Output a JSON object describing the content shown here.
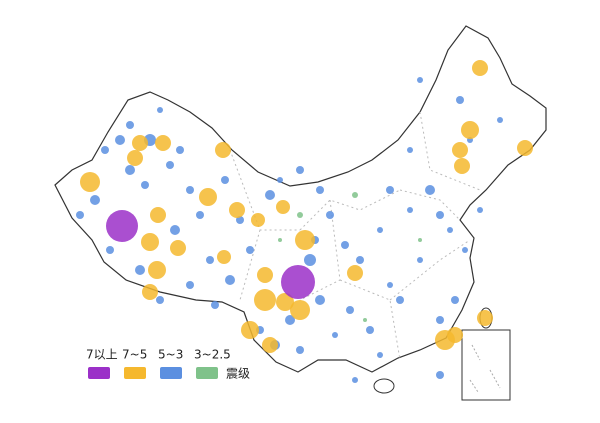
{
  "legend": {
    "items": [
      {
        "label": "7以上",
        "color": "#9b30c8"
      },
      {
        "label": "7~5",
        "color": "#f5b82e"
      },
      {
        "label": "5~3",
        "color": "#5b8fe0"
      },
      {
        "label": "3~2.5",
        "color": "#7fc28a"
      }
    ],
    "unit": "震级"
  }
}
